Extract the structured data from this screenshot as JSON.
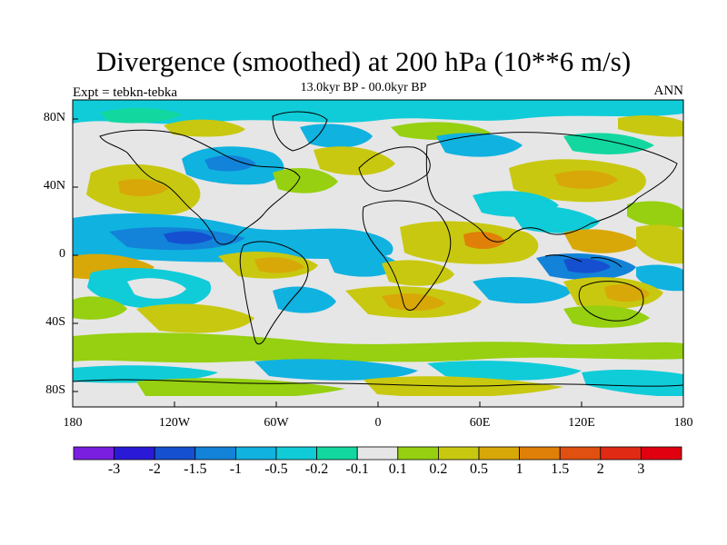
{
  "title": "Divergence (smoothed) at 200 hPa (10**6 m/s)",
  "subtitle": "13.0kyr BP - 00.0kyr BP",
  "left_label": "Expt = tebkn-tebka",
  "right_label": "ANN",
  "axes": {
    "lat_ticks": [
      "80N",
      "40N",
      "0",
      "40S",
      "80S"
    ],
    "lon_ticks": [
      "180",
      "120W",
      "60W",
      "0",
      "60E",
      "120E",
      "180"
    ]
  },
  "colorbar": {
    "labels": [
      "-3",
      "-2",
      "-1.5",
      "-1",
      "-0.5",
      "-0.2",
      "-0.1",
      "0.1",
      "0.2",
      "0.5",
      "1",
      "1.5",
      "2",
      "3"
    ],
    "colors": [
      "#7a1fe0",
      "#2a1ad8",
      "#1550d0",
      "#1283d8",
      "#10b2e0",
      "#10ccd8",
      "#12d8a0",
      "#e6e6e6",
      "#96d010",
      "#c8c810",
      "#d8a808",
      "#e08008",
      "#e05010",
      "#e02a14",
      "#e00010"
    ]
  }
}
